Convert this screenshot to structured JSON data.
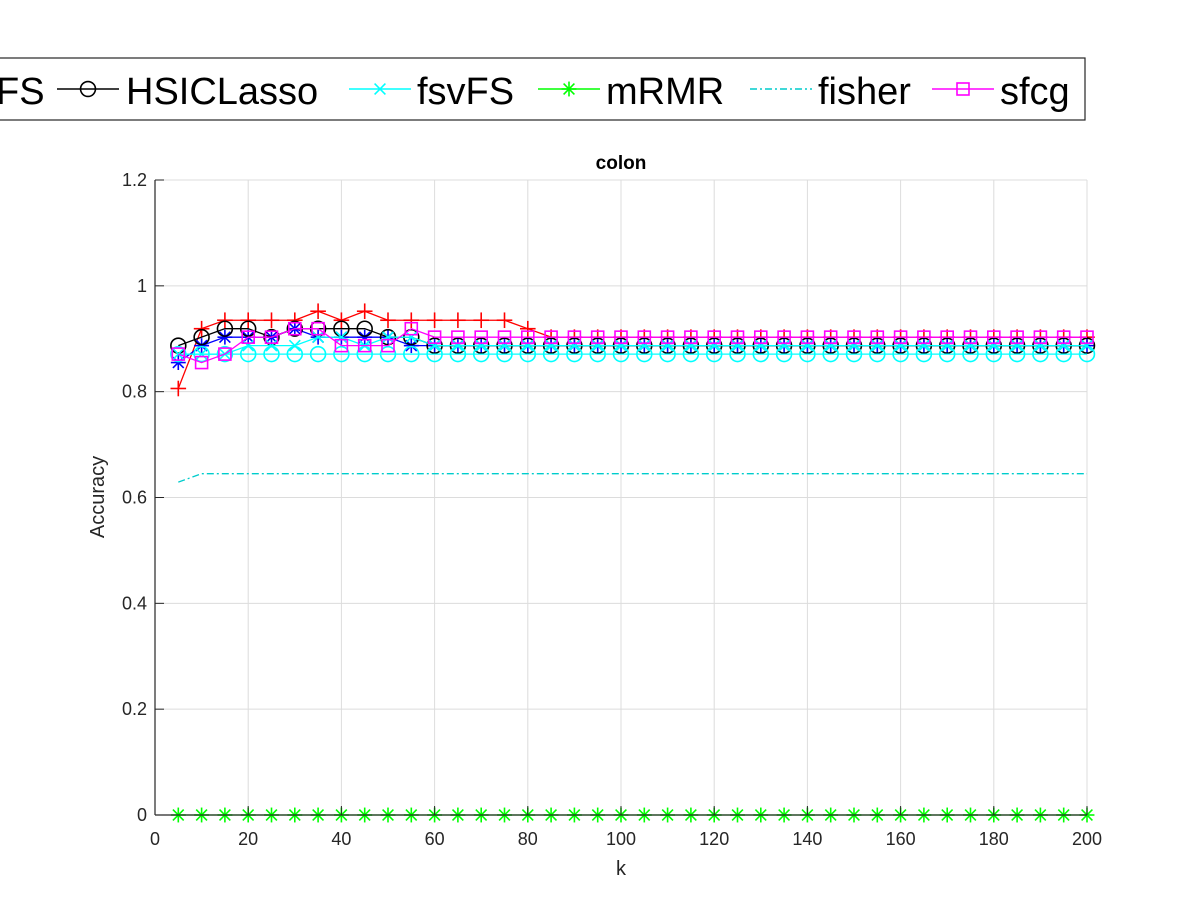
{
  "chart_data": {
    "type": "line",
    "title": "colon",
    "xlabel": "k",
    "ylabel": "Accuracy",
    "xlim": [
      0,
      200
    ],
    "ylim": [
      0,
      1.2
    ],
    "xticks": [
      0,
      20,
      40,
      60,
      80,
      100,
      120,
      140,
      160,
      180,
      200
    ],
    "yticks": [
      0,
      0.2,
      0.4,
      0.6,
      0.8,
      1,
      1.2
    ],
    "ytick_labels": [
      "0",
      "0.2",
      "0.4",
      "0.6",
      "0.8",
      "1",
      "1.2"
    ],
    "grid": true,
    "legend_position": "top, above plot, horizontal",
    "legend_partial_label": "FS",
    "x": [
      5,
      10,
      15,
      20,
      25,
      30,
      35,
      40,
      45,
      50,
      55,
      60,
      65,
      70,
      75,
      80,
      85,
      90,
      95,
      100,
      105,
      110,
      115,
      120,
      125,
      130,
      135,
      140,
      145,
      150,
      155,
      160,
      165,
      170,
      175,
      180,
      185,
      190,
      195,
      200
    ],
    "series": [
      {
        "name": "",
        "color": "#ff0000",
        "marker": "plus",
        "dash": "solid",
        "values": [
          0.806,
          0.919,
          0.935,
          0.935,
          0.935,
          0.935,
          0.952,
          0.935,
          0.952,
          0.935,
          0.935,
          0.935,
          0.935,
          0.935,
          0.935,
          0.919,
          0.903,
          0.903,
          0.903,
          0.903,
          0.903,
          0.903,
          0.903,
          0.903,
          0.903,
          0.903,
          0.903,
          0.903,
          0.903,
          0.903,
          0.903,
          0.903,
          0.903,
          0.903,
          0.903,
          0.903,
          0.903,
          0.903,
          0.903,
          0.903
        ]
      },
      {
        "name": "",
        "color": "#0000ff",
        "marker": "star",
        "dash": "solid",
        "values": [
          0.855,
          0.887,
          0.903,
          0.903,
          0.903,
          0.919,
          0.903,
          0.903,
          0.903,
          0.903,
          0.887,
          0.887,
          0.887,
          0.887,
          0.887,
          0.887,
          0.887,
          0.887,
          0.887,
          0.887,
          0.887,
          0.887,
          0.887,
          0.887,
          0.887,
          0.887,
          0.887,
          0.887,
          0.887,
          0.887,
          0.887,
          0.887,
          0.887,
          0.887,
          0.887,
          0.887,
          0.887,
          0.887,
          0.887,
          0.887
        ]
      },
      {
        "name": "HSICLasso",
        "color": "#000000",
        "marker": "circle",
        "dash": "solid",
        "values": [
          0.887,
          0.903,
          0.919,
          0.919,
          0.903,
          0.919,
          0.919,
          0.919,
          0.919,
          0.903,
          0.903,
          0.887,
          0.887,
          0.887,
          0.887,
          0.887,
          0.887,
          0.887,
          0.887,
          0.887,
          0.887,
          0.887,
          0.887,
          0.887,
          0.887,
          0.887,
          0.887,
          0.887,
          0.887,
          0.887,
          0.887,
          0.887,
          0.887,
          0.887,
          0.887,
          0.887,
          0.887,
          0.887,
          0.887,
          0.887
        ]
      },
      {
        "name": "fsvFS",
        "color": "#00ffff",
        "marker": "x",
        "dash": "solid",
        "values": [
          0.871,
          0.871,
          0.871,
          0.887,
          0.887,
          0.887,
          0.903,
          0.903,
          0.887,
          0.903,
          0.903,
          0.887,
          0.887,
          0.887,
          0.887,
          0.887,
          0.887,
          0.887,
          0.887,
          0.887,
          0.887,
          0.887,
          0.887,
          0.887,
          0.887,
          0.887,
          0.887,
          0.887,
          0.887,
          0.887,
          0.887,
          0.887,
          0.887,
          0.887,
          0.887,
          0.887,
          0.887,
          0.887,
          0.887,
          0.887
        ]
      },
      {
        "name": "",
        "color": "#00ffff",
        "marker": "circle",
        "dash": "solid",
        "values": [
          0.871,
          0.871,
          0.871,
          0.871,
          0.871,
          0.871,
          0.871,
          0.871,
          0.871,
          0.871,
          0.871,
          0.871,
          0.871,
          0.871,
          0.871,
          0.871,
          0.871,
          0.871,
          0.871,
          0.871,
          0.871,
          0.871,
          0.871,
          0.871,
          0.871,
          0.871,
          0.871,
          0.871,
          0.871,
          0.871,
          0.871,
          0.871,
          0.871,
          0.871,
          0.871,
          0.871,
          0.871,
          0.871,
          0.871,
          0.871
        ]
      },
      {
        "name": "mRMR",
        "color": "#00ff00",
        "marker": "star",
        "dash": "solid",
        "values": [
          0,
          0,
          0,
          0,
          0,
          0,
          0,
          0,
          0,
          0,
          0,
          0,
          0,
          0,
          0,
          0,
          0,
          0,
          0,
          0,
          0,
          0,
          0,
          0,
          0,
          0,
          0,
          0,
          0,
          0,
          0,
          0,
          0,
          0,
          0,
          0,
          0,
          0,
          0,
          0
        ]
      },
      {
        "name": "fisher",
        "color": "#00cccc",
        "marker": "none",
        "dash": "dashdot",
        "values": [
          0.629,
          0.645,
          0.645,
          0.645,
          0.645,
          0.645,
          0.645,
          0.645,
          0.645,
          0.645,
          0.645,
          0.645,
          0.645,
          0.645,
          0.645,
          0.645,
          0.645,
          0.645,
          0.645,
          0.645,
          0.645,
          0.645,
          0.645,
          0.645,
          0.645,
          0.645,
          0.645,
          0.645,
          0.645,
          0.645,
          0.645,
          0.645,
          0.645,
          0.645,
          0.645,
          0.645,
          0.645,
          0.645,
          0.645,
          0.645
        ]
      },
      {
        "name": "sfcg",
        "color": "#ff00ff",
        "marker": "square",
        "dash": "solid",
        "values": [
          0.871,
          0.855,
          0.871,
          0.903,
          0.903,
          0.919,
          0.919,
          0.887,
          0.887,
          0.887,
          0.919,
          0.903,
          0.903,
          0.903,
          0.903,
          0.903,
          0.903,
          0.903,
          0.903,
          0.903,
          0.903,
          0.903,
          0.903,
          0.903,
          0.903,
          0.903,
          0.903,
          0.903,
          0.903,
          0.903,
          0.903,
          0.903,
          0.903,
          0.903,
          0.903,
          0.903,
          0.903,
          0.903,
          0.903,
          0.903
        ]
      }
    ]
  }
}
